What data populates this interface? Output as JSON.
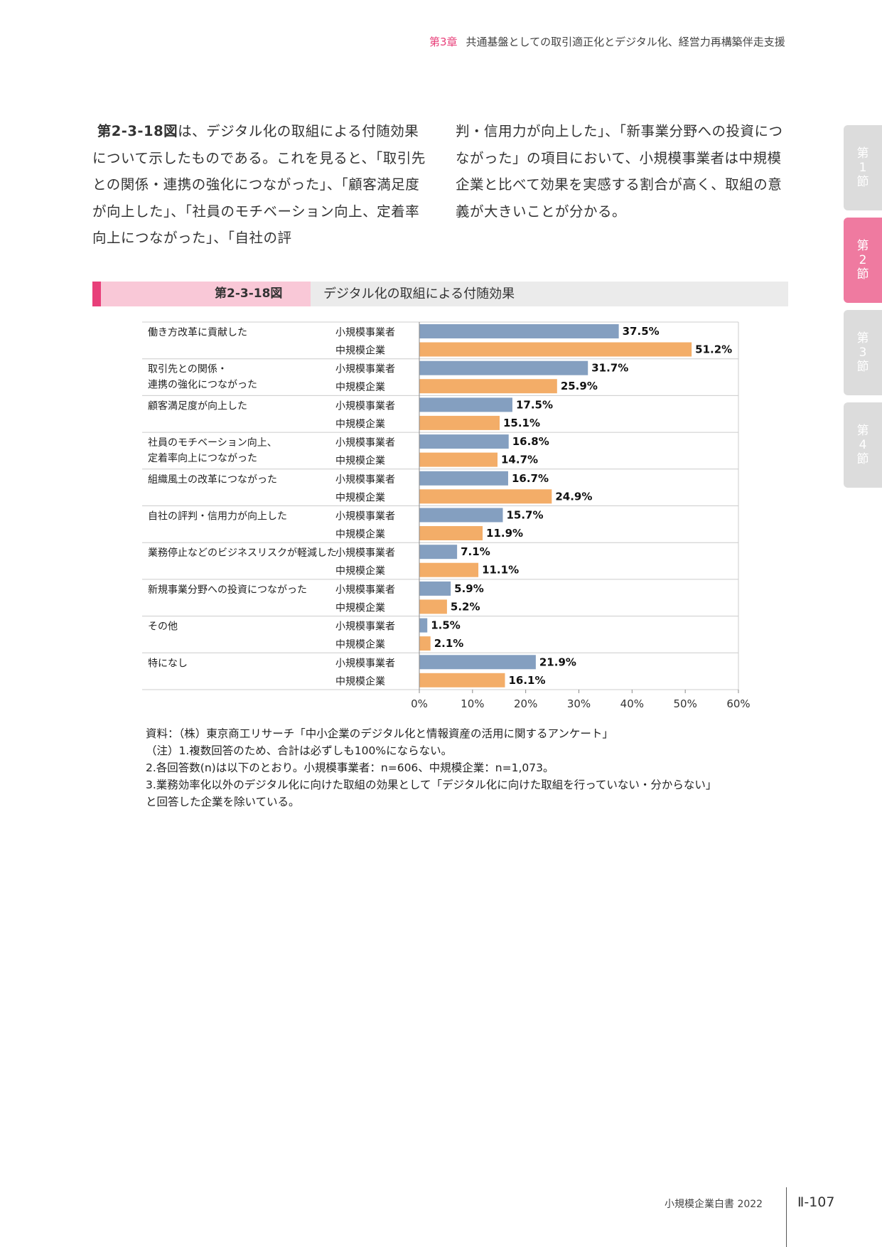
{
  "header": {
    "chapter": "第3章",
    "title": "共通基盤としての取引適正化とデジタル化、経営力再構築伴走支援"
  },
  "body": {
    "left_lead": "第2-3-18図",
    "left_text": "は、デジタル化の取組による付随効果について示したものである。これを見ると、「取引先との関係・連携の強化につながった」、「顧客満足度が向上した」、「社員のモチベーション向上、定着率向上につながった」、「自社の評",
    "right_text": "判・信用力が向上した」、「新事業分野への投資につながった」の項目において、小規模事業者は中規模企業と比べて効果を実感する割合が高く、取組の意義が大きいことが分かる。"
  },
  "side_tabs": [
    {
      "l1": "第",
      "l2": "1",
      "l3": "節"
    },
    {
      "l1": "第",
      "l2": "2",
      "l3": "節"
    },
    {
      "l1": "第",
      "l2": "3",
      "l3": "節"
    },
    {
      "l1": "第",
      "l2": "4",
      "l3": "節"
    }
  ],
  "figure": {
    "number": "第2-3-18図",
    "title": "デジタル化の取組による付随効果"
  },
  "chart_data": {
    "type": "bar",
    "orientation": "horizontal",
    "categories": [
      [
        "働き方改革に貢献した"
      ],
      [
        "取引先との関係・",
        "連携の強化につながった"
      ],
      [
        "顧客満足度が向上した"
      ],
      [
        "社員のモチベーション向上、",
        "定着率向上につながった"
      ],
      [
        "組織風土の改革につながった"
      ],
      [
        "自社の評判・信用力が向上した"
      ],
      [
        "業務停止などのビジネスリスクが軽減した"
      ],
      [
        "新規事業分野への投資につながった"
      ],
      [
        "その他"
      ],
      [
        "特になし"
      ]
    ],
    "series": [
      {
        "name": "小規模事業者",
        "color": "#849fc0",
        "values": [
          37.5,
          31.7,
          17.5,
          16.8,
          16.7,
          15.7,
          7.1,
          5.9,
          1.5,
          21.9
        ]
      },
      {
        "name": "中規模企業",
        "color": "#f3ad68",
        "values": [
          51.2,
          25.9,
          15.1,
          14.7,
          24.9,
          11.9,
          11.1,
          5.2,
          2.1,
          16.1
        ]
      }
    ],
    "value_suffix": "%",
    "xlim": [
      0,
      60
    ],
    "xticks": [
      "0%",
      "10%",
      "20%",
      "30%",
      "40%",
      "50%",
      "60%"
    ],
    "grid": false,
    "legend": "none"
  },
  "notes": [
    "資料：（株）東京商工リサーチ「中小企業のデジタル化と情報資産の活用に関するアンケート」",
    "（注）1.複数回答のため、合計は必ずしも100%にならない。",
    "2.各回答数(n)は以下のとおり。小規模事業者：n=606、中規模企業：n=1,073。",
    "3.業務効率化以外のデジタル化に向けた取組の効果として「デジタル化に向けた取組を行っていない・分からない」",
    "と回答した企業を除いている。"
  ],
  "footer": {
    "publication": "小規模企業白書  2022",
    "page": "Ⅱ-107"
  }
}
